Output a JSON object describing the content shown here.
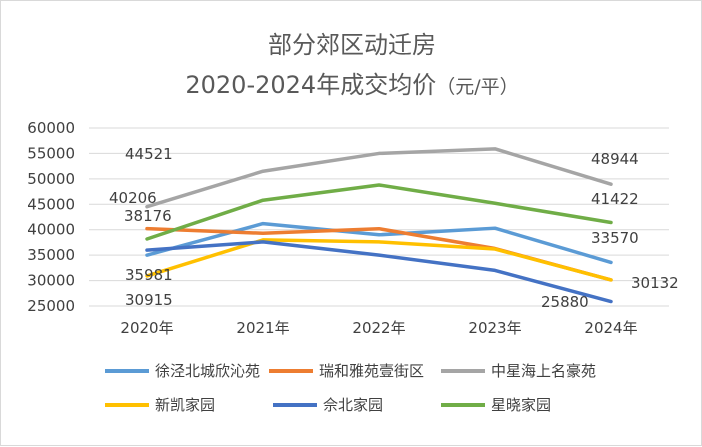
{
  "chart_data": {
    "type": "line",
    "title_line1": "部分郊区动迁房",
    "title_line2_main": "2020-2024年成交均价",
    "title_line2_unit": "（元/平）",
    "categories": [
      "2020年",
      "2021年",
      "2022年",
      "2023年",
      "2024年"
    ],
    "ylim": [
      25000,
      60000
    ],
    "yticks": [
      "60000",
      "55000",
      "50000",
      "45000",
      "40000",
      "35000",
      "30000",
      "25000"
    ],
    "ytick_values": [
      60000,
      55000,
      50000,
      45000,
      40000,
      35000,
      30000,
      25000
    ],
    "grid": true,
    "legend_position": "bottom",
    "series": [
      {
        "name": "徐泾北城欣沁苑",
        "color": "#5b9bd5",
        "values": [
          35000,
          41200,
          39000,
          40300,
          33570
        ]
      },
      {
        "name": "瑞和雅苑壹街区",
        "color": "#ed7d31",
        "values": [
          40206,
          39300,
          40200,
          36300,
          30132
        ]
      },
      {
        "name": "中星海上名豪苑",
        "color": "#a5a5a5",
        "values": [
          44521,
          51500,
          55000,
          55900,
          48944
        ]
      },
      {
        "name": "新凯家园",
        "color": "#ffc000",
        "values": [
          30915,
          38000,
          37600,
          36200,
          30132
        ]
      },
      {
        "name": "佘北家园",
        "color": "#4472c4",
        "values": [
          35981,
          37600,
          35000,
          32000,
          25880
        ]
      },
      {
        "name": "星晓家园",
        "color": "#70ad47",
        "values": [
          38176,
          45800,
          48800,
          45200,
          41422
        ]
      }
    ],
    "data_labels": [
      "44521",
      "40206",
      "38176",
      "35981",
      "30915",
      "48944",
      "41422",
      "33570",
      "30132",
      "25880"
    ]
  }
}
